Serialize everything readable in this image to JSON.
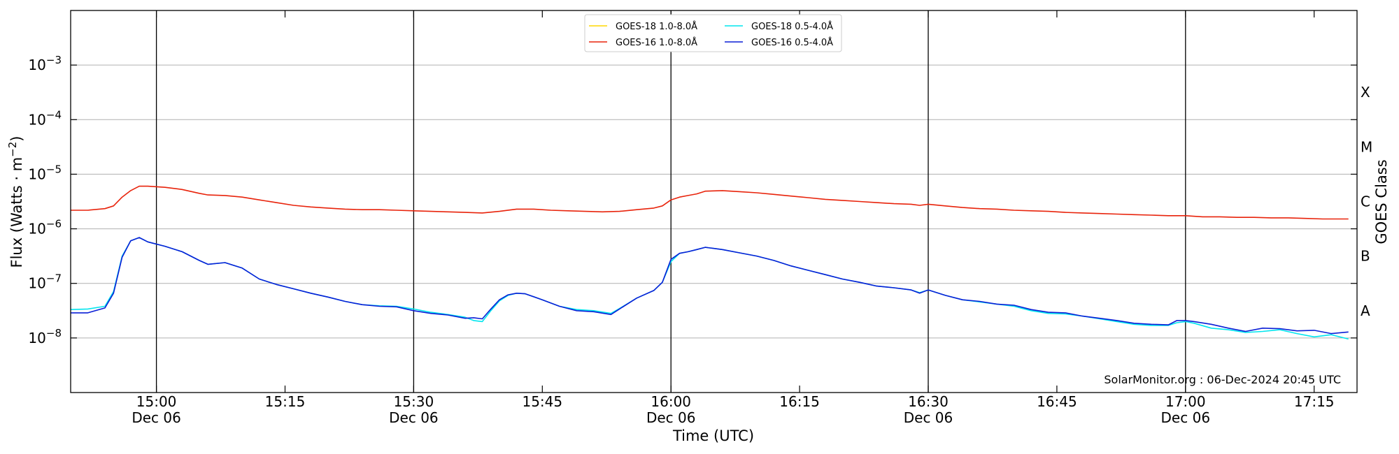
{
  "chart_data": {
    "type": "line",
    "xlabel": "Time (UTC)",
    "ylabel": "Flux (Watts · m",
    "ylabel_sup": "−2",
    "ylabel_close": ")",
    "right_label": "GOES Class",
    "yscale": "log",
    "ylim_exp": [
      -9,
      -2
    ],
    "xlim_min": [
      890,
      1040
    ],
    "y_ticks": [
      {
        "exp": -8,
        "base": "10",
        "sup": "−8"
      },
      {
        "exp": -7,
        "base": "10",
        "sup": "−7"
      },
      {
        "exp": -6,
        "base": "10",
        "sup": "−6"
      },
      {
        "exp": -5,
        "base": "10",
        "sup": "−5"
      },
      {
        "exp": -4,
        "base": "10",
        "sup": "−4"
      },
      {
        "exp": -3,
        "base": "10",
        "sup": "−3"
      }
    ],
    "goes_classes": [
      {
        "label": "A",
        "exp": -7.5
      },
      {
        "label": "B",
        "exp": -6.5
      },
      {
        "label": "C",
        "exp": -5.5
      },
      {
        "label": "M",
        "exp": -4.5
      },
      {
        "label": "X",
        "exp": -3.5
      }
    ],
    "x_ticks": [
      {
        "t": 900,
        "line1": "15:00",
        "line2": "Dec 06"
      },
      {
        "t": 915,
        "line1": "15:15",
        "line2": ""
      },
      {
        "t": 930,
        "line1": "15:30",
        "line2": "Dec 06"
      },
      {
        "t": 945,
        "line1": "15:45",
        "line2": ""
      },
      {
        "t": 960,
        "line1": "16:00",
        "line2": "Dec 06"
      },
      {
        "t": 975,
        "line1": "16:15",
        "line2": ""
      },
      {
        "t": 990,
        "line1": "16:30",
        "line2": "Dec 06"
      },
      {
        "t": 1005,
        "line1": "16:45",
        "line2": ""
      },
      {
        "t": 1020,
        "line1": "17:00",
        "line2": "Dec 06"
      },
      {
        "t": 1035,
        "line1": "17:15",
        "line2": ""
      }
    ],
    "vlines": [
      900,
      930,
      960,
      990,
      1020
    ],
    "credit": "SolarMonitor.org : 06-Dec-2024 20:45 UTC",
    "legend_position": "top-center",
    "series": [
      {
        "name": "GOES-18 1.0-8.0Å",
        "color": "#ffd700",
        "points": []
      },
      {
        "name": "GOES-18 0.5-4.0Å",
        "color": "#00e5ee",
        "points": [
          [
            890,
            -7.48
          ],
          [
            892,
            -7.47
          ],
          [
            894,
            -7.42
          ],
          [
            895,
            -7.15
          ],
          [
            896,
            -6.5
          ],
          [
            897,
            -6.22
          ],
          [
            898,
            -6.16
          ],
          [
            899,
            -6.24
          ],
          [
            901,
            -6.32
          ],
          [
            903,
            -6.42
          ],
          [
            905,
            -6.58
          ],
          [
            906,
            -6.65
          ],
          [
            908,
            -6.62
          ],
          [
            910,
            -6.72
          ],
          [
            912,
            -6.92
          ],
          [
            914,
            -7.02
          ],
          [
            916,
            -7.1
          ],
          [
            918,
            -7.18
          ],
          [
            920,
            -7.25
          ],
          [
            922,
            -7.33
          ],
          [
            924,
            -7.39
          ],
          [
            926,
            -7.41
          ],
          [
            928,
            -7.42
          ],
          [
            930,
            -7.47
          ],
          [
            932,
            -7.53
          ],
          [
            934,
            -7.57
          ],
          [
            936,
            -7.62
          ],
          [
            937,
            -7.68
          ],
          [
            938,
            -7.7
          ],
          [
            939,
            -7.5
          ],
          [
            940,
            -7.32
          ],
          [
            941,
            -7.22
          ],
          [
            942,
            -7.18
          ],
          [
            943,
            -7.19
          ],
          [
            945,
            -7.3
          ],
          [
            947,
            -7.42
          ],
          [
            949,
            -7.48
          ],
          [
            951,
            -7.5
          ],
          [
            953,
            -7.55
          ],
          [
            954,
            -7.46
          ],
          [
            956,
            -7.27
          ],
          [
            958,
            -7.13
          ],
          [
            959,
            -6.98
          ],
          [
            960,
            -6.6
          ],
          [
            961,
            -6.45
          ],
          [
            962,
            -6.42
          ],
          [
            963,
            -6.38
          ],
          [
            964,
            -6.34
          ],
          [
            966,
            -6.38
          ],
          [
            968,
            -6.44
          ],
          [
            970,
            -6.5
          ],
          [
            972,
            -6.58
          ],
          [
            974,
            -6.68
          ],
          [
            976,
            -6.76
          ],
          [
            978,
            -6.84
          ],
          [
            980,
            -6.92
          ],
          [
            982,
            -6.98
          ],
          [
            984,
            -7.05
          ],
          [
            986,
            -7.08
          ],
          [
            988,
            -7.12
          ],
          [
            989,
            -7.17
          ],
          [
            990,
            -7.12
          ],
          [
            992,
            -7.22
          ],
          [
            994,
            -7.3
          ],
          [
            996,
            -7.34
          ],
          [
            998,
            -7.38
          ],
          [
            1000,
            -7.42
          ],
          [
            1002,
            -7.5
          ],
          [
            1004,
            -7.55
          ],
          [
            1006,
            -7.56
          ],
          [
            1008,
            -7.6
          ],
          [
            1010,
            -7.65
          ],
          [
            1012,
            -7.7
          ],
          [
            1014,
            -7.75
          ],
          [
            1016,
            -7.77
          ],
          [
            1018,
            -7.77
          ],
          [
            1019,
            -7.72
          ],
          [
            1020,
            -7.7
          ],
          [
            1021,
            -7.73
          ],
          [
            1023,
            -7.82
          ],
          [
            1025,
            -7.85
          ],
          [
            1027,
            -7.9
          ],
          [
            1029,
            -7.88
          ],
          [
            1031,
            -7.85
          ],
          [
            1033,
            -7.92
          ],
          [
            1035,
            -7.98
          ],
          [
            1037,
            -7.94
          ],
          [
            1039,
            -8.02
          ]
        ]
      },
      {
        "name": "GOES-16 1.0-8.0Å",
        "color": "#e8230b",
        "points": [
          [
            890,
            -5.66
          ],
          [
            892,
            -5.66
          ],
          [
            894,
            -5.63
          ],
          [
            895,
            -5.58
          ],
          [
            896,
            -5.42
          ],
          [
            897,
            -5.3
          ],
          [
            898,
            -5.22
          ],
          [
            899,
            -5.22
          ],
          [
            901,
            -5.24
          ],
          [
            903,
            -5.28
          ],
          [
            905,
            -5.35
          ],
          [
            906,
            -5.38
          ],
          [
            908,
            -5.39
          ],
          [
            910,
            -5.42
          ],
          [
            912,
            -5.47
          ],
          [
            914,
            -5.52
          ],
          [
            916,
            -5.57
          ],
          [
            918,
            -5.6
          ],
          [
            920,
            -5.62
          ],
          [
            922,
            -5.64
          ],
          [
            924,
            -5.65
          ],
          [
            926,
            -5.65
          ],
          [
            928,
            -5.66
          ],
          [
            930,
            -5.67
          ],
          [
            932,
            -5.68
          ],
          [
            934,
            -5.69
          ],
          [
            936,
            -5.7
          ],
          [
            938,
            -5.71
          ],
          [
            940,
            -5.68
          ],
          [
            942,
            -5.64
          ],
          [
            944,
            -5.64
          ],
          [
            946,
            -5.66
          ],
          [
            948,
            -5.67
          ],
          [
            950,
            -5.68
          ],
          [
            952,
            -5.69
          ],
          [
            954,
            -5.68
          ],
          [
            956,
            -5.65
          ],
          [
            958,
            -5.62
          ],
          [
            959,
            -5.58
          ],
          [
            960,
            -5.47
          ],
          [
            961,
            -5.42
          ],
          [
            962,
            -5.39
          ],
          [
            963,
            -5.36
          ],
          [
            964,
            -5.31
          ],
          [
            966,
            -5.3
          ],
          [
            968,
            -5.32
          ],
          [
            970,
            -5.34
          ],
          [
            972,
            -5.37
          ],
          [
            974,
            -5.4
          ],
          [
            976,
            -5.43
          ],
          [
            978,
            -5.46
          ],
          [
            980,
            -5.48
          ],
          [
            982,
            -5.5
          ],
          [
            984,
            -5.52
          ],
          [
            986,
            -5.54
          ],
          [
            988,
            -5.55
          ],
          [
            989,
            -5.57
          ],
          [
            990,
            -5.55
          ],
          [
            992,
            -5.58
          ],
          [
            994,
            -5.61
          ],
          [
            996,
            -5.63
          ],
          [
            998,
            -5.64
          ],
          [
            1000,
            -5.66
          ],
          [
            1002,
            -5.67
          ],
          [
            1004,
            -5.68
          ],
          [
            1006,
            -5.7
          ],
          [
            1008,
            -5.71
          ],
          [
            1010,
            -5.72
          ],
          [
            1012,
            -5.73
          ],
          [
            1014,
            -5.74
          ],
          [
            1016,
            -5.75
          ],
          [
            1018,
            -5.76
          ],
          [
            1020,
            -5.76
          ],
          [
            1022,
            -5.78
          ],
          [
            1024,
            -5.78
          ],
          [
            1026,
            -5.79
          ],
          [
            1028,
            -5.79
          ],
          [
            1030,
            -5.8
          ],
          [
            1032,
            -5.8
          ],
          [
            1034,
            -5.81
          ],
          [
            1036,
            -5.82
          ],
          [
            1038,
            -5.82
          ],
          [
            1039,
            -5.82
          ]
        ]
      },
      {
        "name": "GOES-16 0.5-4.0Å",
        "color": "#0a1ed6",
        "points": [
          [
            890,
            -7.54
          ],
          [
            892,
            -7.54
          ],
          [
            894,
            -7.45
          ],
          [
            895,
            -7.18
          ],
          [
            896,
            -6.52
          ],
          [
            897,
            -6.22
          ],
          [
            898,
            -6.16
          ],
          [
            899,
            -6.24
          ],
          [
            901,
            -6.32
          ],
          [
            903,
            -6.42
          ],
          [
            905,
            -6.58
          ],
          [
            906,
            -6.65
          ],
          [
            908,
            -6.62
          ],
          [
            910,
            -6.72
          ],
          [
            912,
            -6.92
          ],
          [
            914,
            -7.02
          ],
          [
            916,
            -7.1
          ],
          [
            918,
            -7.18
          ],
          [
            920,
            -7.25
          ],
          [
            922,
            -7.33
          ],
          [
            924,
            -7.39
          ],
          [
            926,
            -7.42
          ],
          [
            928,
            -7.43
          ],
          [
            930,
            -7.5
          ],
          [
            932,
            -7.55
          ],
          [
            934,
            -7.58
          ],
          [
            936,
            -7.64
          ],
          [
            937,
            -7.63
          ],
          [
            938,
            -7.65
          ],
          [
            939,
            -7.47
          ],
          [
            940,
            -7.3
          ],
          [
            941,
            -7.21
          ],
          [
            942,
            -7.18
          ],
          [
            943,
            -7.19
          ],
          [
            945,
            -7.3
          ],
          [
            947,
            -7.42
          ],
          [
            949,
            -7.5
          ],
          [
            951,
            -7.52
          ],
          [
            953,
            -7.57
          ],
          [
            954,
            -7.47
          ],
          [
            956,
            -7.27
          ],
          [
            958,
            -7.13
          ],
          [
            959,
            -6.98
          ],
          [
            960,
            -6.56
          ],
          [
            961,
            -6.45
          ],
          [
            962,
            -6.42
          ],
          [
            963,
            -6.38
          ],
          [
            964,
            -6.34
          ],
          [
            966,
            -6.38
          ],
          [
            968,
            -6.44
          ],
          [
            970,
            -6.5
          ],
          [
            972,
            -6.58
          ],
          [
            974,
            -6.68
          ],
          [
            976,
            -6.76
          ],
          [
            978,
            -6.84
          ],
          [
            980,
            -6.92
          ],
          [
            982,
            -6.98
          ],
          [
            984,
            -7.05
          ],
          [
            986,
            -7.08
          ],
          [
            988,
            -7.12
          ],
          [
            989,
            -7.18
          ],
          [
            990,
            -7.12
          ],
          [
            992,
            -7.22
          ],
          [
            994,
            -7.3
          ],
          [
            996,
            -7.33
          ],
          [
            998,
            -7.38
          ],
          [
            1000,
            -7.4
          ],
          [
            1002,
            -7.48
          ],
          [
            1004,
            -7.53
          ],
          [
            1006,
            -7.54
          ],
          [
            1008,
            -7.6
          ],
          [
            1010,
            -7.64
          ],
          [
            1012,
            -7.68
          ],
          [
            1014,
            -7.73
          ],
          [
            1016,
            -7.75
          ],
          [
            1018,
            -7.76
          ],
          [
            1019,
            -7.68
          ],
          [
            1020,
            -7.68
          ],
          [
            1021,
            -7.7
          ],
          [
            1023,
            -7.75
          ],
          [
            1025,
            -7.82
          ],
          [
            1027,
            -7.88
          ],
          [
            1029,
            -7.82
          ],
          [
            1031,
            -7.83
          ],
          [
            1033,
            -7.87
          ],
          [
            1035,
            -7.86
          ],
          [
            1037,
            -7.92
          ],
          [
            1039,
            -7.89
          ]
        ]
      }
    ]
  }
}
